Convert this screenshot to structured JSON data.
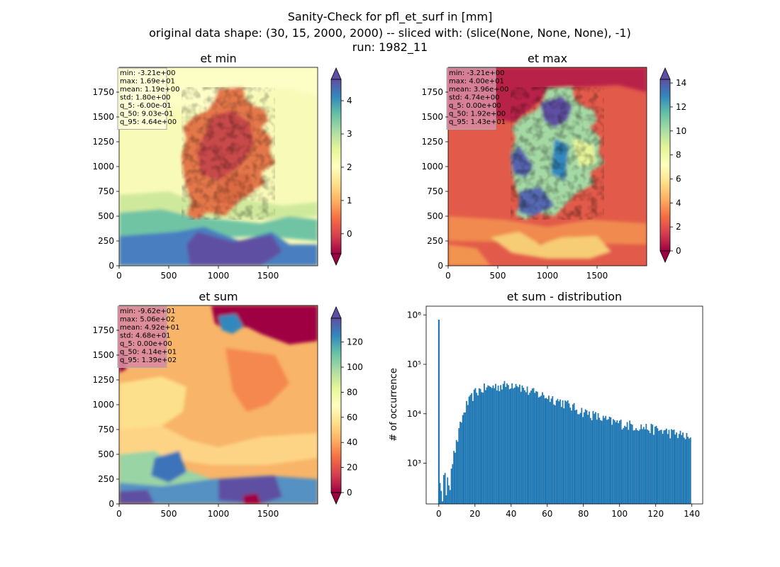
{
  "figure": {
    "title_lines": [
      "Sanity-Check for pfl_et_surf in [mm]",
      "original data shape: (30, 15, 2000, 2000) -- sliced with: (slice(None, None, None), -1)",
      "run: 1982_11"
    ]
  },
  "chart_data": [
    {
      "type": "heatmap",
      "title": "et min",
      "xlim": [
        0,
        2000
      ],
      "ylim": [
        0,
        2000
      ],
      "xticks": [
        0,
        500,
        1000,
        1500
      ],
      "yticks": [
        0,
        250,
        500,
        750,
        1000,
        1250,
        1500,
        1750
      ],
      "colormap": "Spectral",
      "colorbar": {
        "range": [
          -0.6,
          4.64
        ],
        "ticks": [
          0,
          1,
          2,
          3,
          4
        ],
        "extend": "both"
      },
      "stats": [
        "min: -3.21e+00",
        "max: 1.69e+01",
        "mean: 1.19e+00",
        "std: 1.80e+00",
        "q_5: -6.00e-01",
        "q_50: 9.03e-01",
        "q_95: 4.64e+00"
      ],
      "stats_box_color": "#fdfdd8"
    },
    {
      "type": "heatmap",
      "title": "et max",
      "xlim": [
        0,
        2000
      ],
      "ylim": [
        0,
        2000
      ],
      "xticks": [
        0,
        500,
        1000,
        1500
      ],
      "yticks": [
        0,
        250,
        500,
        750,
        1000,
        1250,
        1500,
        1750
      ],
      "colormap": "Spectral",
      "colorbar": {
        "range": [
          0,
          14.3
        ],
        "ticks": [
          0,
          2,
          4,
          6,
          8,
          10,
          12,
          14
        ],
        "extend": "both"
      },
      "stats": [
        "min: -3.21e+00",
        "max: 4.00e+01",
        "mean: 3.96e+00",
        "std: 4.74e+00",
        "q_5: 0.00e+00",
        "q_50: 1.92e+00",
        "q_95: 1.43e+01"
      ],
      "stats_box_color": "#d98aa0"
    },
    {
      "type": "heatmap",
      "title": "et sum",
      "xlim": [
        0,
        2000
      ],
      "ylim": [
        0,
        2000
      ],
      "xticks": [
        0,
        500,
        1000,
        1500
      ],
      "yticks": [
        0,
        250,
        500,
        750,
        1000,
        1250,
        1500,
        1750
      ],
      "colormap": "Spectral",
      "colorbar": {
        "range": [
          0,
          139
        ],
        "ticks": [
          0,
          20,
          40,
          60,
          80,
          100,
          120
        ],
        "extend": "both"
      },
      "stats": [
        "min: -9.62e+01",
        "max: 5.06e+02",
        "mean: 4.92e+01",
        "std: 4.68e+01",
        "q_5: 0.00e+00",
        "q_50: 4.14e+01",
        "q_95: 1.39e+02"
      ],
      "stats_box_color": "#d98aa0"
    },
    {
      "type": "bar",
      "title": "et sum - distribution",
      "xlabel": "",
      "ylabel": "# of occurrence",
      "yscale": "log",
      "xlim": [
        -7,
        146
      ],
      "ylim": [
        150,
        1500000
      ],
      "xticks": [
        0,
        20,
        40,
        60,
        80,
        100,
        120,
        140
      ],
      "yticks": [
        {
          "value": 1000,
          "label": "10³"
        },
        {
          "value": 10000,
          "label": "10⁴"
        },
        {
          "value": 100000,
          "label": "10⁵"
        },
        {
          "value": 1000000,
          "label": "10⁶"
        }
      ],
      "color": "#1f77b4",
      "spike": {
        "x": 0,
        "value": 800000
      },
      "profile": [
        [
          0.3,
          500
        ],
        [
          2,
          500
        ],
        [
          4,
          550
        ],
        [
          6,
          700
        ],
        [
          8,
          1500
        ],
        [
          10,
          3000
        ],
        [
          12,
          7000
        ],
        [
          15,
          15000
        ],
        [
          18,
          22000
        ],
        [
          20,
          28000
        ],
        [
          25,
          33000
        ],
        [
          30,
          36000
        ],
        [
          35,
          37000
        ],
        [
          40,
          40000
        ],
        [
          43,
          42000
        ],
        [
          46,
          33000
        ],
        [
          50,
          28000
        ],
        [
          55,
          25000
        ],
        [
          60,
          22000
        ],
        [
          65,
          19000
        ],
        [
          70,
          16000
        ],
        [
          75,
          13000
        ],
        [
          80,
          11000
        ],
        [
          85,
          9500
        ],
        [
          90,
          8000
        ],
        [
          95,
          7000
        ],
        [
          100,
          6500
        ],
        [
          105,
          6000
        ],
        [
          110,
          5600
        ],
        [
          115,
          5200
        ],
        [
          120,
          4800
        ],
        [
          125,
          4400
        ],
        [
          130,
          4000
        ],
        [
          135,
          3700
        ],
        [
          139,
          3000
        ]
      ]
    }
  ]
}
